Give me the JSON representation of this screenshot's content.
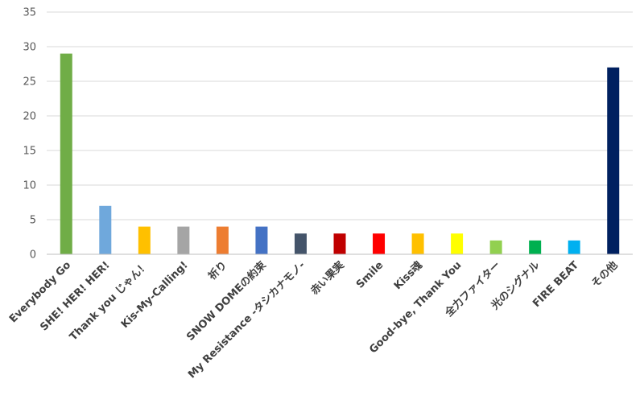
{
  "chart_data": {
    "type": "bar",
    "title": "",
    "xlabel": "",
    "ylabel": "",
    "ylim": [
      0,
      35
    ],
    "yticks": [
      0,
      5,
      10,
      15,
      20,
      25,
      30,
      35
    ],
    "grid": true,
    "legend": "none",
    "categories": [
      "Everybody Go",
      "SHE! HER! HER!",
      "Thank you じゃん！",
      "Kis-My-Calling!",
      "祈り",
      "SNOW DOMEの約束",
      "My Resistance -タシカナモノ-",
      "赤い果実",
      "Smile",
      "Kiss魂",
      "Good-bye, Thank You",
      "全力ファイター",
      "光のシグナル",
      "FIRE BEAT",
      "その他"
    ],
    "values": [
      29,
      7,
      4,
      4,
      4,
      4,
      3,
      3,
      3,
      3,
      3,
      2,
      2,
      2,
      27
    ],
    "colors": [
      "#70ad47",
      "#6fa8dc",
      "#ffc000",
      "#a5a5a5",
      "#ed7d31",
      "#4472c4",
      "#44546a",
      "#c00000",
      "#ff0000",
      "#ffc000",
      "#ffff00",
      "#92d050",
      "#00b050",
      "#00b0f0",
      "#002060"
    ]
  }
}
